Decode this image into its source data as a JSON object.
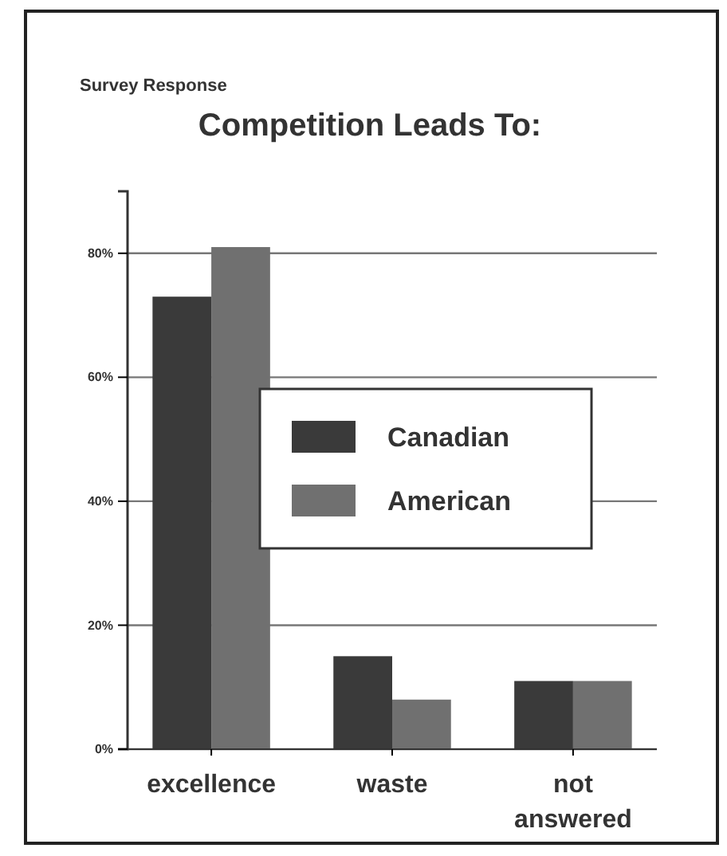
{
  "chart_data": {
    "type": "bar",
    "subtitle": "Survey Response",
    "title": "Competition Leads To:",
    "categories": [
      "excellence",
      "waste",
      "not\nanswered"
    ],
    "series": [
      {
        "name": "Canadian",
        "color": "#3a3a3a",
        "values": [
          73,
          15,
          11
        ]
      },
      {
        "name": "American",
        "color": "#707070",
        "values": [
          81,
          8,
          11
        ]
      }
    ],
    "ylim": [
      0,
      90
    ],
    "yticks": [
      {
        "value": 0,
        "label": "0%"
      },
      {
        "value": 20,
        "label": "20%"
      },
      {
        "value": 40,
        "label": "40%"
      },
      {
        "value": 60,
        "label": "60%"
      },
      {
        "value": 80,
        "label": "80%"
      }
    ],
    "grid": "y",
    "legend": "center"
  }
}
